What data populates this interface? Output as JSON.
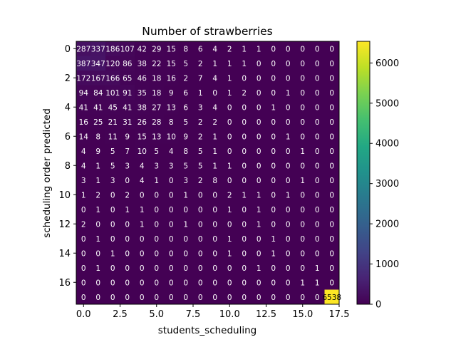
{
  "chart_data": {
    "type": "heatmap",
    "title": "Number of strawberries",
    "xlabel": "students_scheduling",
    "ylabel": "scheduling order predicted",
    "colormap": "viridis",
    "color_range": [
      0,
      6538
    ],
    "x_ticks": [
      "0.0",
      "2.5",
      "5.0",
      "7.5",
      "10.0",
      "12.5",
      "15.0",
      "17.5"
    ],
    "x_tick_values": [
      0,
      2.5,
      5,
      7.5,
      10,
      12.5,
      15,
      17.5
    ],
    "y_ticks": [
      "0",
      "2",
      "4",
      "6",
      "8",
      "10",
      "12",
      "14",
      "16"
    ],
    "y_tick_values": [
      0,
      2,
      4,
      6,
      8,
      10,
      12,
      14,
      16
    ],
    "colorbar_ticks": [
      "0",
      "1000",
      "2000",
      "3000",
      "4000",
      "5000",
      "6000"
    ],
    "colorbar_tick_values": [
      0,
      1000,
      2000,
      3000,
      4000,
      5000,
      6000
    ],
    "matrix": [
      [
        287,
        337,
        186,
        107,
        42,
        29,
        15,
        8,
        6,
        4,
        2,
        1,
        1,
        0,
        0,
        0,
        0,
        0
      ],
      [
        387,
        347,
        120,
        86,
        38,
        22,
        15,
        5,
        2,
        1,
        1,
        1,
        0,
        0,
        0,
        0,
        0,
        0
      ],
      [
        172,
        167,
        166,
        65,
        46,
        18,
        16,
        2,
        7,
        4,
        1,
        0,
        0,
        0,
        0,
        0,
        0,
        0
      ],
      [
        94,
        84,
        101,
        91,
        35,
        18,
        9,
        6,
        1,
        0,
        1,
        2,
        0,
        0,
        1,
        0,
        0,
        0
      ],
      [
        41,
        41,
        45,
        41,
        38,
        27,
        13,
        6,
        3,
        4,
        0,
        0,
        0,
        1,
        0,
        0,
        0,
        0
      ],
      [
        16,
        25,
        21,
        31,
        26,
        28,
        8,
        5,
        2,
        2,
        0,
        0,
        0,
        0,
        0,
        0,
        0,
        0
      ],
      [
        14,
        8,
        11,
        9,
        15,
        13,
        10,
        9,
        2,
        1,
        0,
        0,
        0,
        0,
        1,
        0,
        0,
        0
      ],
      [
        4,
        9,
        5,
        7,
        10,
        5,
        4,
        8,
        5,
        1,
        0,
        0,
        0,
        0,
        0,
        1,
        0,
        0
      ],
      [
        4,
        1,
        5,
        3,
        4,
        3,
        3,
        5,
        5,
        1,
        1,
        0,
        0,
        0,
        0,
        0,
        0,
        0
      ],
      [
        3,
        1,
        3,
        0,
        4,
        1,
        0,
        3,
        2,
        8,
        0,
        0,
        0,
        0,
        0,
        1,
        0,
        0
      ],
      [
        1,
        2,
        0,
        2,
        0,
        0,
        0,
        1,
        0,
        0,
        2,
        1,
        1,
        0,
        1,
        0,
        0,
        0
      ],
      [
        0,
        1,
        0,
        1,
        1,
        0,
        0,
        0,
        0,
        0,
        1,
        0,
        1,
        0,
        0,
        0,
        0,
        0
      ],
      [
        2,
        0,
        0,
        0,
        1,
        0,
        0,
        1,
        0,
        0,
        0,
        0,
        1,
        0,
        0,
        0,
        0,
        0
      ],
      [
        0,
        1,
        0,
        0,
        0,
        0,
        0,
        0,
        0,
        0,
        1,
        0,
        0,
        1,
        0,
        0,
        0,
        0
      ],
      [
        0,
        0,
        1,
        0,
        0,
        0,
        0,
        0,
        0,
        0,
        1,
        0,
        0,
        1,
        0,
        0,
        0,
        0
      ],
      [
        0,
        1,
        0,
        0,
        0,
        0,
        0,
        0,
        0,
        0,
        0,
        0,
        1,
        0,
        0,
        0,
        1,
        0
      ],
      [
        0,
        0,
        0,
        0,
        0,
        0,
        0,
        0,
        0,
        0,
        0,
        0,
        0,
        0,
        0,
        1,
        1,
        0
      ],
      [
        0,
        0,
        0,
        0,
        0,
        0,
        0,
        0,
        0,
        0,
        0,
        0,
        0,
        0,
        0,
        0,
        0,
        6538
      ]
    ]
  }
}
